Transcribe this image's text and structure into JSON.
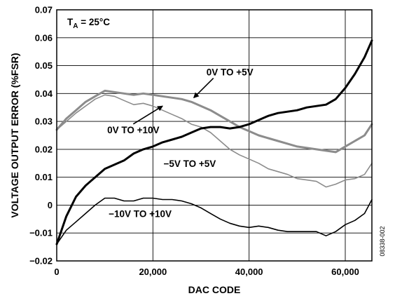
{
  "chart_data": {
    "type": "line",
    "xlabel": "DAC CODE",
    "ylabel": "VOLTAGE OUTPUT ERROR (%FSR)",
    "xlim": [
      0,
      65535
    ],
    "ylim": [
      -0.02,
      0.07
    ],
    "x_ticks": [
      0,
      20000,
      40000,
      60000
    ],
    "x_tick_labels": [
      "0",
      "20,000",
      "40,000",
      "60,000"
    ],
    "y_ticks": [
      -0.02,
      -0.01,
      0,
      0.01,
      0.02,
      0.03,
      0.04,
      0.05,
      0.06,
      0.07
    ],
    "y_tick_labels": [
      "−0.02",
      "−0.01",
      "0",
      "0.01",
      "0.02",
      "0.03",
      "0.04",
      "0.05",
      "0.06",
      "0.07"
    ],
    "grid": true,
    "legend": "none",
    "condition": {
      "prefix": "T",
      "subscript": "A",
      "suffix": " = 25°C"
    },
    "figure_id": "08338-002",
    "series": [
      {
        "name": "0V TO +5V",
        "color": "#8c8c8c",
        "thick": true,
        "x": [
          0,
          2000,
          4000,
          6000,
          8000,
          10000,
          12000,
          14000,
          16000,
          18000,
          20000,
          22000,
          24000,
          26000,
          28000,
          30000,
          32000,
          34000,
          36000,
          38000,
          40000,
          42000,
          44000,
          46000,
          48000,
          50000,
          52000,
          54000,
          56000,
          58000,
          60000,
          62000,
          64000,
          65535
        ],
        "y": [
          0.027,
          0.031,
          0.034,
          0.037,
          0.039,
          0.041,
          0.0405,
          0.04,
          0.0395,
          0.04,
          0.0395,
          0.039,
          0.0385,
          0.038,
          0.037,
          0.0355,
          0.034,
          0.032,
          0.03,
          0.028,
          0.0265,
          0.025,
          0.024,
          0.023,
          0.022,
          0.021,
          0.0205,
          0.02,
          0.0195,
          0.019,
          0.021,
          0.023,
          0.025,
          0.029
        ]
      },
      {
        "name": "0V TO +10V",
        "color": "#8c8c8c",
        "thick": false,
        "x": [
          0,
          2000,
          4000,
          6000,
          8000,
          10000,
          12000,
          14000,
          16000,
          18000,
          20000,
          22000,
          24000,
          26000,
          28000,
          30000,
          32000,
          34000,
          36000,
          38000,
          40000,
          42000,
          44000,
          46000,
          48000,
          50000,
          52000,
          54000,
          56000,
          58000,
          60000,
          62000,
          64000,
          65535
        ],
        "y": [
          0.027,
          0.03,
          0.033,
          0.0355,
          0.038,
          0.0395,
          0.039,
          0.0375,
          0.036,
          0.0365,
          0.0355,
          0.034,
          0.0325,
          0.031,
          0.029,
          0.028,
          0.026,
          0.023,
          0.02,
          0.018,
          0.0165,
          0.015,
          0.013,
          0.012,
          0.011,
          0.0095,
          0.009,
          0.0085,
          0.0065,
          0.0075,
          0.009,
          0.0095,
          0.011,
          0.015
        ]
      },
      {
        "name": "−5V TO +5V",
        "color": "#000000",
        "thick": true,
        "x": [
          0,
          2000,
          4000,
          6000,
          8000,
          10000,
          12000,
          14000,
          16000,
          18000,
          20000,
          22000,
          24000,
          26000,
          28000,
          30000,
          32000,
          34000,
          36000,
          38000,
          40000,
          42000,
          44000,
          46000,
          48000,
          50000,
          52000,
          54000,
          56000,
          58000,
          60000,
          62000,
          64000,
          65535
        ],
        "y": [
          -0.014,
          -0.004,
          0.003,
          0.007,
          0.01,
          0.013,
          0.0145,
          0.016,
          0.0185,
          0.02,
          0.021,
          0.0225,
          0.0235,
          0.0245,
          0.026,
          0.0275,
          0.028,
          0.028,
          0.0275,
          0.028,
          0.029,
          0.0305,
          0.032,
          0.033,
          0.0335,
          0.034,
          0.035,
          0.0355,
          0.036,
          0.038,
          0.042,
          0.047,
          0.053,
          0.059
        ]
      },
      {
        "name": "−10V TO +10V",
        "color": "#000000",
        "thick": false,
        "x": [
          0,
          2000,
          4000,
          6000,
          8000,
          10000,
          12000,
          14000,
          16000,
          18000,
          20000,
          22000,
          24000,
          26000,
          28000,
          30000,
          32000,
          34000,
          36000,
          38000,
          40000,
          42000,
          44000,
          46000,
          48000,
          50000,
          52000,
          54000,
          56000,
          58000,
          60000,
          62000,
          64000,
          65535
        ],
        "y": [
          -0.014,
          -0.009,
          -0.006,
          -0.003,
          0,
          0.0025,
          0.0025,
          0.0015,
          0.0015,
          0.0025,
          0.0025,
          0.002,
          0.002,
          0.0015,
          0.0005,
          -0.001,
          -0.003,
          -0.005,
          -0.0065,
          -0.0075,
          -0.008,
          -0.0075,
          -0.008,
          -0.009,
          -0.0095,
          -0.0095,
          -0.0095,
          -0.0095,
          -0.011,
          -0.0095,
          -0.007,
          -0.0055,
          -0.003,
          0.002
        ]
      }
    ],
    "annotations": [
      {
        "text": "0V TO +5V",
        "x": 36000,
        "y": 0.0465,
        "anchor": "middle",
        "arrow_to": [
          28500,
          0.0385
        ]
      },
      {
        "text": "0V TO +10V",
        "x": 10500,
        "y": 0.0258,
        "anchor": "start",
        "arrow_to": [
          22000,
          0.0355
        ]
      },
      {
        "text": "−5V TO +5V",
        "x": 22200,
        "y": 0.0137,
        "anchor": "start"
      },
      {
        "text": "−10V TO +10V",
        "x": 10800,
        "y": -0.0043,
        "anchor": "start"
      }
    ]
  }
}
